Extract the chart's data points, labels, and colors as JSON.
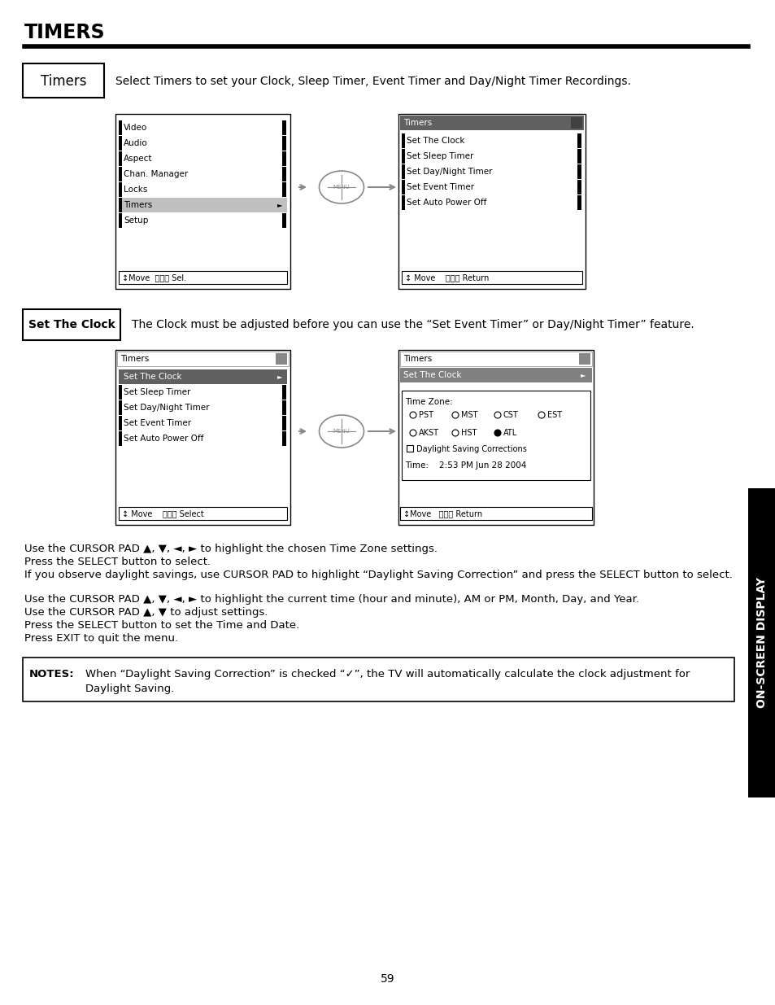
{
  "title": "TIMERS",
  "bg_color": "#ffffff",
  "page_num": "59",
  "timers_label": "Timers",
  "timers_desc": "Select Timers to set your Clock, Sleep Timer, Event Timer and Day/Night Timer Recordings.",
  "set_clock_label": "Set The Clock",
  "set_clock_desc": "The Clock must be adjusted before you can use the “Set Event Timer” or Day/Night Timer” feature.",
  "menu1_items": [
    "Video",
    "Audio",
    "Aspect",
    "Chan. Manager",
    "Locks",
    "Timers",
    "Setup"
  ],
  "menu1_highlight": 5,
  "menu1_bottom": "↕Move  Ⓢⓔⓛ Sel.",
  "menu2_title": "Timers",
  "menu2_items": [
    "Set The Clock",
    "Set Sleep Timer",
    "Set Day/Night Timer",
    "Set Event Timer",
    "Set Auto Power Off"
  ],
  "menu2_bottom": "↕ Move    Ⓢⓔⓛ Return",
  "menu3_title": "Timers",
  "menu3_items": [
    "Set The Clock",
    "Set Sleep Timer",
    "Set Day/Night Timer",
    "Set Event Timer",
    "Set Auto Power Off"
  ],
  "menu3_highlight": 0,
  "menu3_bottom": "↕ Move    Ⓢⓔⓛ Select",
  "menu4_title": "Timers",
  "menu4_subtitle": "Set The Clock",
  "menu4_timezone_label": "Time Zone:",
  "menu4_row1": [
    "PST",
    "MST",
    "CST",
    "EST"
  ],
  "menu4_row2": [
    "AKST",
    "HST",
    "ATL"
  ],
  "menu4_atl_selected": true,
  "menu4_dst": "Daylight Saving Corrections",
  "menu4_time": "Time:    2:53 PM Jun 28 2004",
  "menu4_bottom": "↕Move   Ⓢⓔⓛ Return",
  "para1_lines": [
    "Use the CURSOR PAD ▲, ▼, ◄, ► to highlight the chosen Time Zone settings.",
    "Press the SELECT button to select.",
    "If you observe daylight savings, use CURSOR PAD to highlight “Daylight Saving Correction” and press the SELECT button to select."
  ],
  "para2_lines": [
    "Use the CURSOR PAD ▲, ▼, ◄, ► to highlight the current time (hour and minute), AM or PM, Month, Day, and Year.",
    "Use the CURSOR PAD ▲, ▼ to adjust settings.",
    "Press the SELECT button to set the Time and Date.",
    "Press EXIT to quit the menu."
  ],
  "notes_label": "NOTES:",
  "notes_text": "When “Daylight Saving Correction” is checked “✓”, the TV will automatically calculate the clock adjustment for\nDaylight Saving.",
  "sidebar_text": "ON-SCREEN DISPLAY"
}
